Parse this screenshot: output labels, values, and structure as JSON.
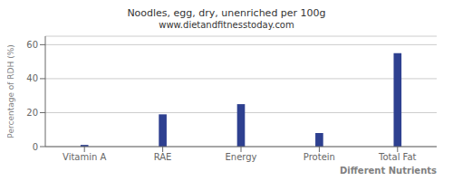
{
  "chart_data": {
    "type": "bar",
    "title": "Noodles, egg, dry, unenriched per 100g",
    "subtitle": "www.dietandfitnesstoday.com",
    "xlabel": "Different Nutrients",
    "ylabel": "Percentage of RDH (%)",
    "categories": [
      "Vitamin A",
      "RAE",
      "Energy",
      "Protein",
      "Total Fat"
    ],
    "values": [
      1,
      19,
      25,
      8,
      55
    ],
    "color": "#2e4090",
    "ylim": [
      0,
      65
    ],
    "yticks": [
      0,
      20,
      40,
      60
    ],
    "grid": true
  }
}
